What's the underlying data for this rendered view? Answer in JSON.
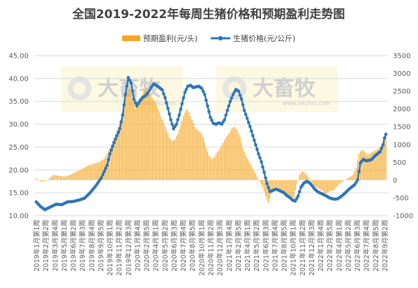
{
  "chart_data": {
    "type": "bar+line",
    "title": "全国2019-2022年每周生猪价格和预期盈利走势图",
    "legend": {
      "position": "top",
      "bar_label": "预期盈利(元/头)",
      "line_label": "生猪价格(元/公斤)"
    },
    "colors": {
      "bar": "#F5A623",
      "line": "#2E75B6",
      "text": "#404040",
      "axis": "#d9d9d9"
    },
    "left_axis": {
      "ylim": [
        10,
        45
      ],
      "ticks": [
        "10.00",
        "15.00",
        "20.00",
        "25.00",
        "30.00",
        "35.00",
        "40.00",
        "45.00"
      ]
    },
    "right_axis": {
      "ylim": [
        -1000,
        3500
      ],
      "ticks": [
        "-1000",
        "-500",
        "0",
        "500",
        "1000",
        "1500",
        "2000",
        "2500",
        "3000",
        "3500"
      ]
    },
    "x_tick_labels": [
      "2019年1月第1周",
      "2019年2月第2周",
      "2019年3月第4周",
      "2019年5月第1周",
      "2019年6月第2周",
      "2019年7月第3周",
      "2019年8月第4周",
      "2019年9月第5周",
      "2019年10月第1周",
      "2019年11月第2周",
      "2019年12月第3周",
      "2020年1月第4周",
      "2020年2月第5周",
      "2020年4月第1周",
      "2020年5月第2周",
      "2020年6月第3周",
      "2020年7月第4周",
      "2020年8月第5周",
      "2020年10月第1周",
      "2020年11月第2周",
      "2020年12月第3周",
      "2021年1月第4周",
      "2021年2月第5周",
      "2021年4月第1周",
      "2021年5月第2周",
      "2021年6月第3周",
      "2021年7月第4周",
      "2021年8月第5周",
      "2021年10月第1周",
      "2021年11月第2周",
      "2021年12月第3周",
      "2022年1月第4周",
      "2022年2月第5周",
      "2022年4月第1周",
      "2022年5月第2周",
      "2022年6月第3周",
      "2022年7月第4周",
      "2022年8月第5周",
      "2022年9月第2周"
    ],
    "watermarks": [
      {
        "text": "大畜牧",
        "sub": "www.dxumu.com"
      },
      {
        "text": "大畜牧",
        "sub": "www.dxumu.com"
      }
    ],
    "price_anchors_weekly": [
      [
        0,
        13.0
      ],
      [
        3,
        12.0
      ],
      [
        6,
        11.3
      ],
      [
        10,
        11.9
      ],
      [
        14,
        12.5
      ],
      [
        18,
        12.4
      ],
      [
        22,
        13.0
      ],
      [
        26,
        13.1
      ],
      [
        30,
        13.4
      ],
      [
        34,
        13.8
      ],
      [
        38,
        15.0
      ],
      [
        42,
        16.5
      ],
      [
        46,
        18.3
      ],
      [
        50,
        21.0
      ],
      [
        52,
        23.5
      ],
      [
        55,
        26.0
      ],
      [
        57,
        27.5
      ],
      [
        59,
        29.0
      ],
      [
        61,
        32.0
      ],
      [
        63,
        36.5
      ],
      [
        65,
        40.2
      ],
      [
        67,
        39.0
      ],
      [
        69,
        35.5
      ],
      [
        71,
        34.0
      ],
      [
        73,
        35.0
      ],
      [
        75,
        35.8
      ],
      [
        77,
        36.2
      ],
      [
        79,
        36.9
      ],
      [
        81,
        38.0
      ],
      [
        83,
        38.8
      ],
      [
        85,
        38.5
      ],
      [
        87,
        38.0
      ],
      [
        89,
        37.5
      ],
      [
        91,
        35.8
      ],
      [
        93,
        33.5
      ],
      [
        95,
        31.0
      ],
      [
        97,
        29.0
      ],
      [
        99,
        30.0
      ],
      [
        101,
        32.0
      ],
      [
        103,
        34.5
      ],
      [
        105,
        37.0
      ],
      [
        107,
        38.3
      ],
      [
        109,
        38.5
      ],
      [
        111,
        38.0
      ],
      [
        113,
        38.2
      ],
      [
        115,
        38.3
      ],
      [
        117,
        37.8
      ],
      [
        119,
        36.5
      ],
      [
        121,
        34.0
      ],
      [
        123,
        31.5
      ],
      [
        125,
        30.2
      ],
      [
        127,
        30.0
      ],
      [
        129,
        30.3
      ],
      [
        131,
        30.0
      ],
      [
        133,
        31.0
      ],
      [
        135,
        33.0
      ],
      [
        137,
        35.0
      ],
      [
        139,
        36.5
      ],
      [
        141,
        37.6
      ],
      [
        143,
        37.2
      ],
      [
        145,
        35.5
      ],
      [
        147,
        33.0
      ],
      [
        149,
        31.3
      ],
      [
        151,
        29.5
      ],
      [
        153,
        27.5
      ],
      [
        155,
        25.5
      ],
      [
        157,
        23.5
      ],
      [
        159,
        21.8
      ],
      [
        161,
        19.5
      ],
      [
        163,
        17.0
      ],
      [
        165,
        15.3
      ],
      [
        167,
        15.5
      ],
      [
        169,
        15.8
      ],
      [
        171,
        15.6
      ],
      [
        173,
        15.3
      ],
      [
        175,
        15.0
      ],
      [
        177,
        14.4
      ],
      [
        179,
        14.0
      ],
      [
        181,
        13.4
      ],
      [
        183,
        13.2
      ],
      [
        185,
        14.3
      ],
      [
        187,
        16.2
      ],
      [
        189,
        17.1
      ],
      [
        191,
        17.5
      ],
      [
        193,
        17.2
      ],
      [
        195,
        16.5
      ],
      [
        197,
        15.7
      ],
      [
        199,
        15.2
      ],
      [
        201,
        14.9
      ],
      [
        203,
        14.6
      ],
      [
        205,
        14.3
      ],
      [
        207,
        13.9
      ],
      [
        209,
        13.7
      ],
      [
        211,
        13.6
      ],
      [
        213,
        13.7
      ],
      [
        215,
        14.1
      ],
      [
        217,
        14.6
      ],
      [
        219,
        15.2
      ],
      [
        221,
        15.8
      ],
      [
        223,
        16.3
      ],
      [
        225,
        16.8
      ],
      [
        227,
        17.8
      ],
      [
        229,
        21.5
      ],
      [
        231,
        22.3
      ],
      [
        233,
        22.0
      ],
      [
        235,
        22.1
      ],
      [
        237,
        22.3
      ],
      [
        239,
        23.0
      ],
      [
        241,
        23.5
      ],
      [
        243,
        24.0
      ],
      [
        245,
        25.5
      ],
      [
        246,
        27.0
      ],
      [
        247,
        27.8
      ]
    ],
    "profit_anchors_weekly": [
      [
        0,
        50
      ],
      [
        4,
        -50
      ],
      [
        8,
        0
      ],
      [
        12,
        150
      ],
      [
        16,
        120
      ],
      [
        20,
        100
      ],
      [
        24,
        150
      ],
      [
        28,
        230
      ],
      [
        32,
        300
      ],
      [
        36,
        400
      ],
      [
        40,
        450
      ],
      [
        44,
        500
      ],
      [
        48,
        600
      ],
      [
        52,
        900
      ],
      [
        56,
        1300
      ],
      [
        58,
        1500
      ],
      [
        60,
        1700
      ],
      [
        62,
        2000
      ],
      [
        64,
        2500
      ],
      [
        66,
        2600
      ],
      [
        68,
        2300
      ],
      [
        70,
        2000
      ],
      [
        72,
        2100
      ],
      [
        74,
        2300
      ],
      [
        76,
        2500
      ],
      [
        78,
        2600
      ],
      [
        80,
        2400
      ],
      [
        82,
        2300
      ],
      [
        84,
        2200
      ],
      [
        86,
        2000
      ],
      [
        88,
        1800
      ],
      [
        90,
        1600
      ],
      [
        92,
        1400
      ],
      [
        94,
        1200
      ],
      [
        96,
        1100
      ],
      [
        98,
        1150
      ],
      [
        100,
        1300
      ],
      [
        102,
        1550
      ],
      [
        104,
        1800
      ],
      [
        106,
        2000
      ],
      [
        108,
        1900
      ],
      [
        110,
        1700
      ],
      [
        112,
        1500
      ],
      [
        114,
        1400
      ],
      [
        116,
        1350
      ],
      [
        118,
        1200
      ],
      [
        120,
        900
      ],
      [
        122,
        700
      ],
      [
        124,
        600
      ],
      [
        126,
        650
      ],
      [
        128,
        800
      ],
      [
        130,
        900
      ],
      [
        132,
        1050
      ],
      [
        134,
        1200
      ],
      [
        136,
        1300
      ],
      [
        138,
        1450
      ],
      [
        140,
        1500
      ],
      [
        142,
        1400
      ],
      [
        144,
        1200
      ],
      [
        146,
        900
      ],
      [
        148,
        700
      ],
      [
        150,
        550
      ],
      [
        152,
        400
      ],
      [
        154,
        250
      ],
      [
        156,
        100
      ],
      [
        158,
        -50
      ],
      [
        160,
        -200
      ],
      [
        162,
        -450
      ],
      [
        164,
        -650
      ],
      [
        166,
        -400
      ],
      [
        168,
        -200
      ],
      [
        170,
        -250
      ],
      [
        172,
        -300
      ],
      [
        174,
        -350
      ],
      [
        176,
        -420
      ],
      [
        178,
        -480
      ],
      [
        180,
        -550
      ],
      [
        182,
        -500
      ],
      [
        184,
        -100
      ],
      [
        186,
        150
      ],
      [
        188,
        250
      ],
      [
        190,
        200
      ],
      [
        192,
        100
      ],
      [
        194,
        -30
      ],
      [
        196,
        -150
      ],
      [
        198,
        -200
      ],
      [
        200,
        -250
      ],
      [
        202,
        -300
      ],
      [
        204,
        -380
      ],
      [
        206,
        -350
      ],
      [
        208,
        -300
      ],
      [
        210,
        -300
      ],
      [
        212,
        -200
      ],
      [
        214,
        -100
      ],
      [
        216,
        -50
      ],
      [
        218,
        0
      ],
      [
        220,
        50
      ],
      [
        222,
        100
      ],
      [
        224,
        150
      ],
      [
        226,
        350
      ],
      [
        228,
        750
      ],
      [
        230,
        850
      ],
      [
        232,
        800
      ],
      [
        234,
        700
      ],
      [
        236,
        750
      ],
      [
        238,
        800
      ],
      [
        240,
        850
      ],
      [
        242,
        900
      ],
      [
        244,
        1000
      ],
      [
        246,
        1200
      ],
      [
        247,
        1350
      ]
    ],
    "weeks": 248
  }
}
